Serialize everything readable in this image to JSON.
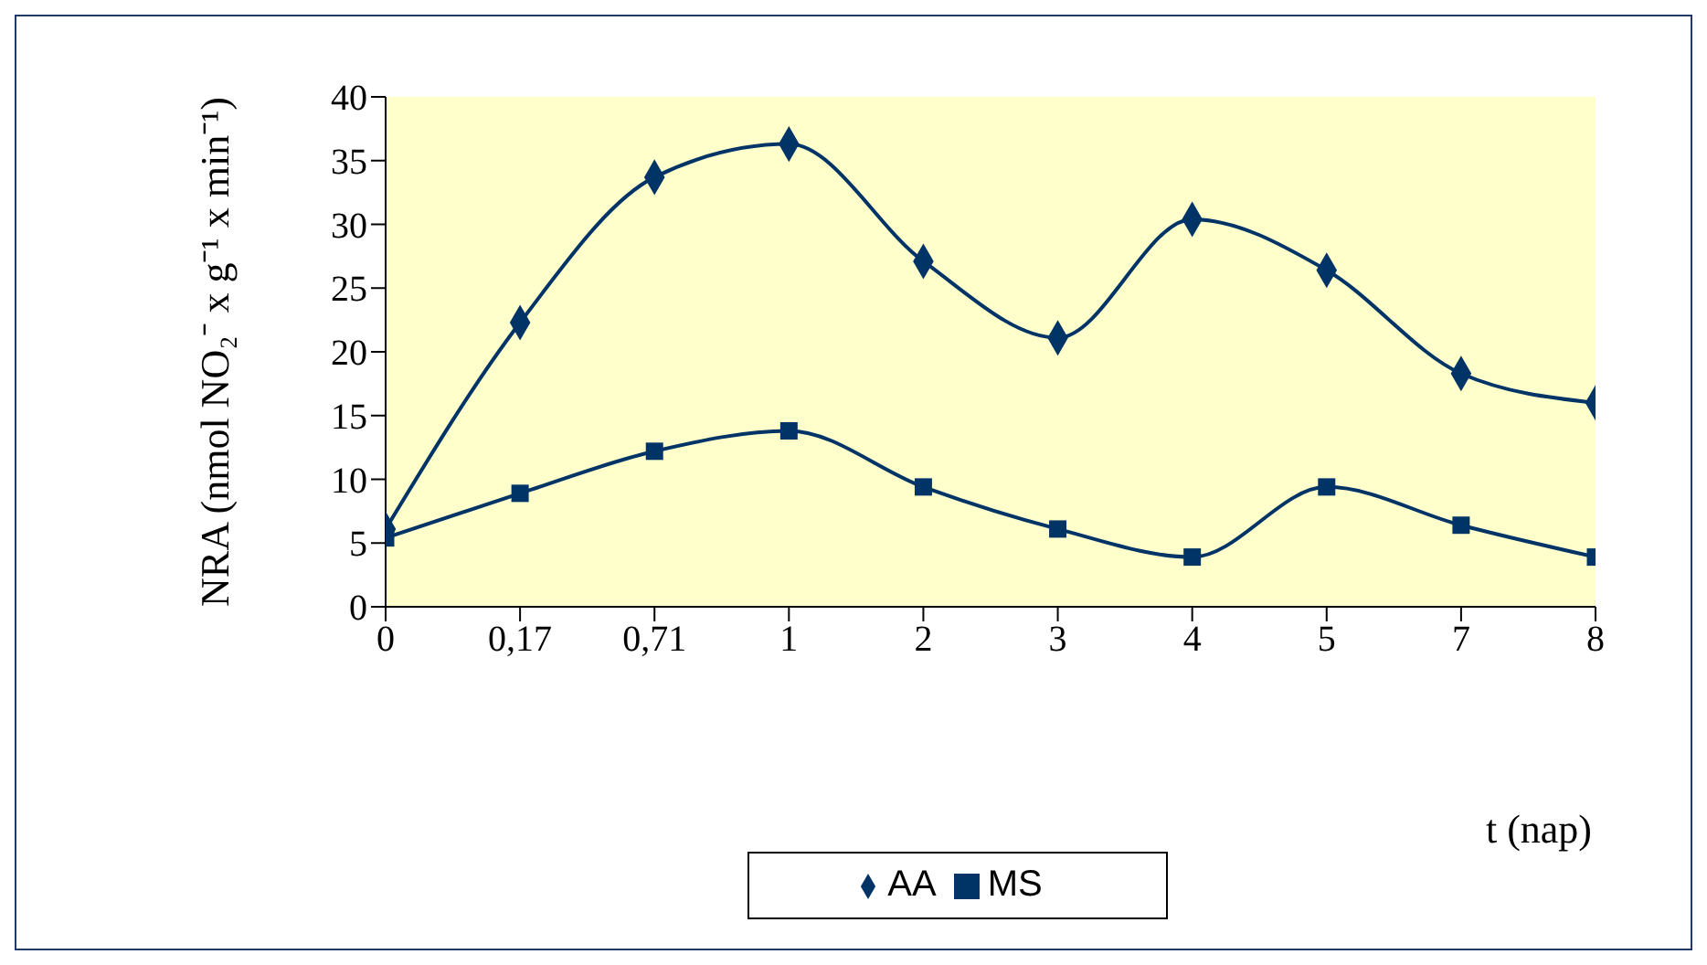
{
  "chart_data": {
    "type": "line",
    "xlabel": "t (nap)",
    "ylabel": "NRA (nmol NO₂⁻ x g⁻¹ x min⁻¹)",
    "categories": [
      "0",
      "0,17",
      "0,71",
      "1",
      "2",
      "3",
      "4",
      "5",
      "7",
      "8"
    ],
    "series": [
      {
        "name": "AA",
        "color": "#003366",
        "marker": "diamond",
        "values": [
          6.1,
          22.3,
          33.7,
          36.3,
          27.1,
          21.1,
          30.4,
          26.4,
          18.3,
          16.0
        ]
      },
      {
        "name": "MS",
        "color": "#003366",
        "marker": "square",
        "values": [
          5.4,
          8.9,
          12.2,
          13.8,
          9.4,
          6.1,
          3.9,
          9.4,
          6.4,
          3.9
        ]
      }
    ],
    "ylim": [
      0,
      40
    ],
    "yticks": [
      0,
      5,
      10,
      15,
      20,
      25,
      30,
      35,
      40
    ],
    "grid": false,
    "legend": "bottom",
    "line_style": "solid"
  }
}
